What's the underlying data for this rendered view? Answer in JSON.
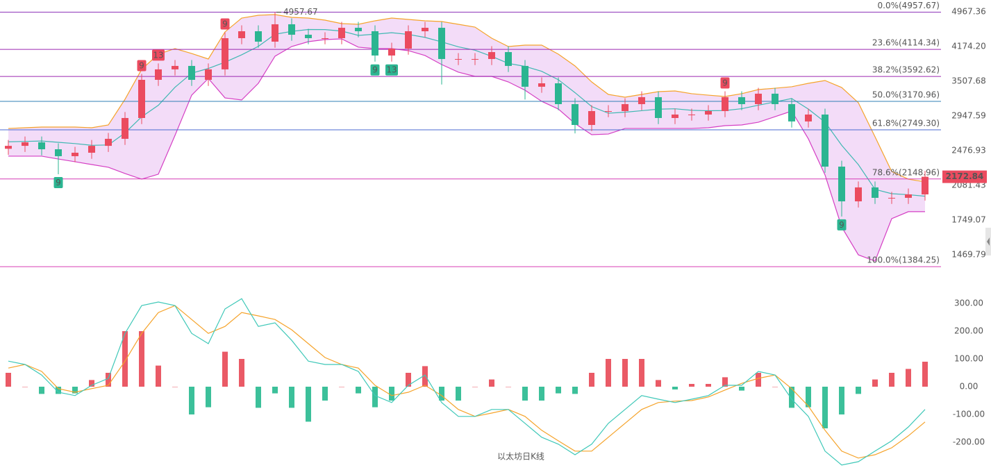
{
  "chart_data": [
    {
      "type": "candlestick",
      "log_scale": true,
      "up_color": "#eb4b5f",
      "down_color": "#2bb591",
      "open": [
        2500,
        2537,
        2582,
        2494,
        2409,
        2451,
        2537,
        2628,
        2917,
        3532,
        3722,
        3787,
        3532,
        3722,
        4352,
        4506,
        4277,
        4666,
        4428,
        4352,
        4352,
        4585,
        4506,
        3990,
        4131,
        4506,
        4585,
        3921,
        3921,
        3921,
        4059,
        3787,
        3412,
        3471,
        3127,
        2817,
        3020,
        3020,
        3127,
        3238,
        2917,
        2968,
        2968,
        3020,
        3238,
        3127,
        3295,
        3127,
        2867,
        2968,
        2286,
        1921,
        2060,
        1955,
        1955,
        1989
      ],
      "high": [
        2613,
        2659,
        2659,
        2569,
        2525,
        2613,
        2707,
        3005,
        3638,
        3834,
        3901,
        3901,
        3834,
        4483,
        4641,
        4641,
        4957.67,
        4806,
        4561,
        4483,
        4723,
        4723,
        4641,
        4255,
        4641,
        4723,
        4723,
        4039,
        4039,
        4181,
        4181,
        3901,
        3575,
        3575,
        3221,
        3111,
        3111,
        3221,
        3335,
        3335,
        3057,
        3057,
        3111,
        3335,
        3335,
        3394,
        3394,
        3221,
        3057,
        3057,
        2355,
        2122,
        2122,
        2014,
        2049,
        2238
      ],
      "low": [
        2425,
        2461,
        2419,
        2200,
        2337,
        2377,
        2461,
        2549,
        2829,
        3426,
        3610,
        3426,
        3426,
        3610,
        4221,
        4149,
        4149,
        4295,
        4221,
        4221,
        4221,
        4371,
        3870,
        3870,
        4007,
        4371,
        3450,
        3803,
        3803,
        3803,
        3673,
        3200,
        3310,
        3033,
        2700,
        2732,
        2929,
        2929,
        3033,
        2829,
        2829,
        2879,
        2879,
        2929,
        3033,
        3033,
        3033,
        2781,
        2781,
        2217,
        1780,
        1863,
        1896,
        1896,
        1896,
        1929
      ],
      "close": [
        2537,
        2582,
        2494,
        2409,
        2451,
        2537,
        2628,
        2917,
        3532,
        3722,
        3787,
        3532,
        3722,
        4352,
        4506,
        4277,
        4666,
        4428,
        4352,
        4352,
        4585,
        4506,
        3990,
        4131,
        4506,
        4585,
        3921,
        3921,
        3921,
        4059,
        3787,
        3412,
        3471,
        3127,
        2817,
        3020,
        3020,
        3127,
        3238,
        2917,
        2968,
        2968,
        3020,
        3238,
        3127,
        3295,
        3127,
        2867,
        2968,
        2286,
        1921,
        2060,
        1955,
        1955,
        1989,
        2172.84
      ],
      "bands": {
        "fill_color": "#f3dcf8",
        "upper": {
          "color": "#f5a32a",
          "values": [
            2768,
            2778,
            2788,
            2788,
            2788,
            2778,
            2817,
            3204,
            3722,
            4017,
            4131,
            4031,
            3921,
            4491,
            4814,
            4882,
            4899,
            4831,
            4814,
            4764,
            4682,
            4666,
            4748,
            4814,
            4781,
            4748,
            4731,
            4666,
            4601,
            4352,
            4174,
            4203,
            4203,
            4017,
            3787,
            3495,
            3283,
            3238,
            3283,
            3329,
            3341,
            3295,
            3271,
            3249,
            3295,
            3364,
            3387,
            3412,
            3471,
            3520,
            3399,
            3149,
            2655,
            2231,
            2147,
            2118
          ]
        },
        "middle": {
          "color": "#3fb8b2",
          "values": [
            2589,
            2594,
            2599,
            2582,
            2566,
            2544,
            2548,
            2706,
            2935,
            3109,
            3403,
            3651,
            3739,
            3859,
            4004,
            4177,
            4438,
            4503,
            4546,
            4543,
            4510,
            4413,
            4440,
            4473,
            4435,
            4369,
            4272,
            4168,
            4098,
            3973,
            3835,
            3778,
            3687,
            3534,
            3312,
            3089,
            2988,
            3003,
            3026,
            3049,
            3055,
            3032,
            3025,
            3028,
            3056,
            3110,
            3162,
            3216,
            3050,
            2857,
            2544,
            2309,
            2040,
            1996,
            1986,
            1971
          ]
        },
        "lower": {
          "color": "#d53fc4",
          "values": [
            2409,
            2409,
            2409,
            2375,
            2343,
            2310,
            2279,
            2208,
            2147,
            2201,
            2674,
            3271,
            3557,
            3226,
            3193,
            3471,
            3976,
            4174,
            4277,
            4322,
            4337,
            4160,
            4131,
            4131,
            4088,
            3990,
            3813,
            3670,
            3594,
            3594,
            3495,
            3353,
            3171,
            3051,
            2837,
            2683,
            2692,
            2768,
            2768,
            2768,
            2768,
            2768,
            2778,
            2807,
            2817,
            2856,
            2937,
            3020,
            2628,
            2193,
            1689,
            1469,
            1424,
            1761,
            1824,
            1824
          ]
        }
      },
      "ylim": [
        1222,
        5270
      ],
      "yticks": [
        4967.36,
        {
          "value": 4174.2,
          "label": "4174.20"
        },
        3507.68,
        2947.59,
        2476.93,
        2081.43,
        1749.07,
        1469.79
      ],
      "fib_levels": [
        {
          "label": "0.0%(4957.67)",
          "value": 4957.67,
          "color": "#8e35b8"
        },
        {
          "label": "23.6%(4114.34)",
          "value": 4114.34,
          "color": "#9c27b0"
        },
        {
          "label": "38.2%(3592.62)",
          "value": 3592.62,
          "color": "#9c27b0"
        },
        {
          "label": "50.0%(3170.96)",
          "value": 3170.96,
          "color": "#2f7fb5"
        },
        {
          "label": "61.8%(2749.30)",
          "value": 2749.3,
          "color": "#4a6ad0"
        },
        {
          "label": "78.6%(2148.96)",
          "value": 2148.96,
          "color": "#d63cb5"
        },
        {
          "label": "100.0%(1384.25)",
          "value": 1384.25,
          "color": "#d63cb5"
        }
      ],
      "markers": [
        {
          "index": 3,
          "label": "9",
          "color": "#2bb591"
        },
        {
          "index": 8,
          "label": "9",
          "color": "#eb4b5f"
        },
        {
          "index": 9,
          "label": "13",
          "color": "#eb4b5f"
        },
        {
          "index": 13,
          "label": "9",
          "color": "#eb4b5f"
        },
        {
          "index": 22,
          "label": "9",
          "color": "#2bb591"
        },
        {
          "index": 23,
          "label": "13",
          "color": "#2bb591"
        },
        {
          "index": 43,
          "label": "9",
          "color": "#eb4b5f"
        },
        {
          "index": 50,
          "label": "9",
          "color": "#2bb591"
        }
      ],
      "peak": {
        "index": 16,
        "value": 4957.67
      },
      "last_price_color": "#eb4b5f",
      "watermark": "以太坊日K线"
    },
    {
      "type": "macd",
      "dif": {
        "color": "#3fc8b8",
        "values": [
          92,
          80,
          42,
          -20,
          -32,
          5,
          30,
          192,
          292,
          305,
          292,
          192,
          155,
          280,
          317,
          217,
          230,
          167,
          92,
          80,
          80,
          55,
          -32,
          -57,
          5,
          42,
          -57,
          -107,
          -107,
          -82,
          -82,
          -132,
          -182,
          -207,
          -245,
          -207,
          -132,
          -82,
          -32,
          -45,
          -57,
          -45,
          -32,
          5,
          5,
          55,
          42,
          -45,
          -107,
          -232,
          -282,
          -270,
          -232,
          -195,
          -145,
          -82
        ]
      },
      "dea": {
        "color": "#f5a32a",
        "values": [
          67,
          80,
          55,
          -7,
          -20,
          -7,
          5,
          92,
          192,
          267,
          292,
          242,
          192,
          217,
          267,
          255,
          242,
          205,
          155,
          105,
          80,
          67,
          5,
          -32,
          -20,
          5,
          -32,
          -82,
          -107,
          -95,
          -82,
          -107,
          -157,
          -195,
          -232,
          -232,
          -182,
          -132,
          -82,
          -57,
          -52,
          -50,
          -37,
          -12,
          12,
          30,
          42,
          -7,
          -70,
          -157,
          -232,
          -257,
          -245,
          -220,
          -177,
          -127
        ]
      },
      "hist": {
        "up_color": "#ea5a66",
        "down_color": "#3cc09a",
        "values": [
          50,
          0,
          -26,
          -26,
          -24,
          24,
          50,
          200,
          200,
          76,
          0,
          -100,
          -74,
          126,
          100,
          -76,
          -24,
          -76,
          -126,
          -50,
          0,
          -24,
          -74,
          -50,
          50,
          74,
          -50,
          -50,
          0,
          26,
          0,
          -50,
          -50,
          -24,
          -26,
          50,
          100,
          100,
          100,
          24,
          -10,
          10,
          10,
          34,
          -14,
          50,
          0,
          -76,
          -74,
          -150,
          -100,
          -26,
          26,
          50,
          64,
          90
        ]
      },
      "ylim": [
        -300,
        330
      ],
      "yticks": [
        {
          "value": 300,
          "label": "300.00"
        },
        {
          "value": 200,
          "label": "200.00"
        },
        {
          "value": 100,
          "label": "100.00"
        },
        {
          "value": 0,
          "label": "0.00"
        },
        {
          "value": -100,
          "label": "-100.00"
        },
        {
          "value": -200,
          "label": "-200.00"
        }
      ]
    }
  ]
}
